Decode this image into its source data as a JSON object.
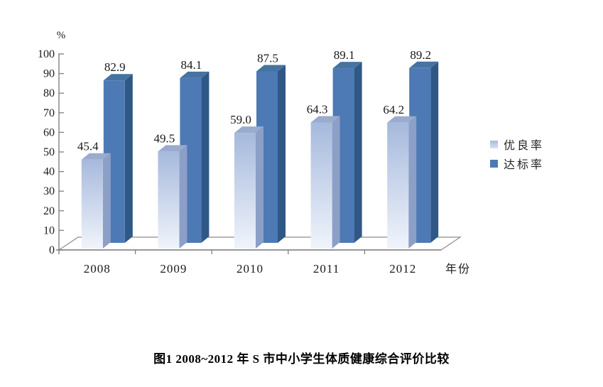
{
  "figure": {
    "caption": "图1  2008~2012 年 S 市中小学生体质健康综合评价比较"
  },
  "chart_data": {
    "type": "bar",
    "style": "3d-clustered-column",
    "unit_label": "%",
    "xlabel": "年份",
    "categories": [
      "2008",
      "2009",
      "2010",
      "2011",
      "2012"
    ],
    "series": [
      {
        "name": "优良率",
        "values": [
          45.4,
          49.5,
          59.0,
          64.3,
          64.2
        ]
      },
      {
        "name": "达标率",
        "values": [
          82.9,
          84.1,
          87.5,
          89.1,
          89.2
        ]
      }
    ],
    "ylim": [
      0,
      100
    ],
    "ytick_step": 10,
    "value_labels": "one-decimal",
    "grid": "off",
    "legend_position": "right"
  },
  "colors": {
    "light_front_top": "#a6b9dc",
    "light_front_bottom": "#f0f4fb",
    "light_top_face": "#9aabce",
    "light_side_face": "#8b9fc7",
    "dark_front": "#4d7ab5",
    "dark_top_face": "#46739f",
    "dark_side_face": "#2f5886",
    "axis_line": "#7f7f7f",
    "floor_line": "#8c8c8c",
    "text": "#1a1a1a"
  }
}
